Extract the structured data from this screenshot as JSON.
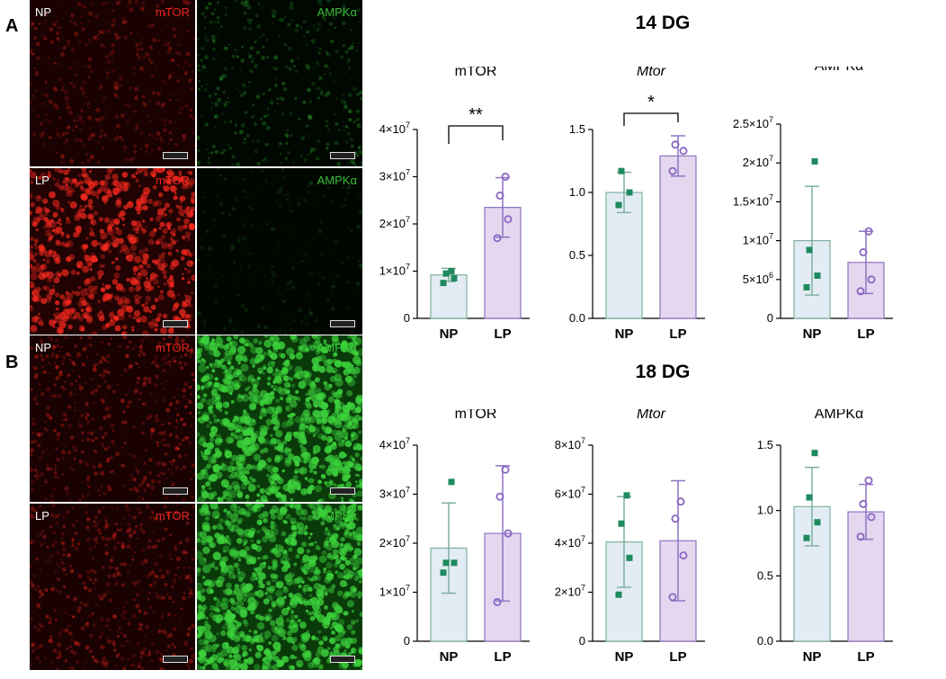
{
  "panels": [
    {
      "letter": "A",
      "section_title": "14 DG",
      "images": [
        {
          "row_label": "NP",
          "stain": "mTOR",
          "color": "#ff2a20",
          "bg": "#1a0202",
          "intensity": 0.32,
          "style": "sparse"
        },
        {
          "row_label": "",
          "stain": "AMPKα",
          "color": "#3cd23c",
          "bg": "#010801",
          "intensity": 0.32,
          "style": "sparse"
        },
        {
          "row_label": "LP",
          "stain": "mTOR",
          "color": "#ff2a20",
          "bg": "#200302",
          "intensity": 0.75,
          "style": "dense"
        },
        {
          "row_label": "",
          "stain": "AMPKα",
          "color": "#3cd23c",
          "bg": "#010601",
          "intensity": 0.14,
          "style": "faint"
        }
      ]
    },
    {
      "letter": "B",
      "section_title": "18 DG",
      "images": [
        {
          "row_label": "NP",
          "stain": "mTOR",
          "color": "#ff2a20",
          "bg": "#1a0202",
          "intensity": 0.4,
          "style": "medium"
        },
        {
          "row_label": "",
          "stain": "AMPKα",
          "color": "#3cd23c",
          "bg": "#0a3a0a",
          "intensity": 0.92,
          "style": "tissue"
        },
        {
          "row_label": "LP",
          "stain": "mTOR",
          "color": "#ff2a20",
          "bg": "#1a0202",
          "intensity": 0.38,
          "style": "medium"
        },
        {
          "row_label": "",
          "stain": "AMPKα",
          "color": "#3cd23c",
          "bg": "#0a3a0a",
          "intensity": 0.88,
          "style": "tissue"
        }
      ]
    }
  ],
  "colors": {
    "np_fill": "#e3ecf4",
    "np_stroke": "#7fb0a0",
    "np_point": "#1e8a5e",
    "lp_fill": "#e4d8f0",
    "lp_stroke": "#8f73c2",
    "lp_point": "#8a65c2"
  },
  "chart_data": [
    {
      "type": "bar",
      "panel": "14 DG",
      "title": "mTOR",
      "title_italic": false,
      "categories": [
        "NP",
        "LP"
      ],
      "series": [
        {
          "values": [
            9200000.0,
            23500000.0
          ],
          "error": [
            1400000.0,
            6300000.0
          ]
        }
      ],
      "points": [
        [
          7500000.0,
          8500000.0,
          9500000.0,
          10000000.0
        ],
        [
          17000000.0,
          21000000.0,
          26000000.0,
          30000000.0
        ]
      ],
      "ylim": [
        0,
        40000000.0
      ],
      "ticks": [
        {
          "v": 0,
          "label": "0"
        },
        {
          "v": 10000000.0,
          "label": "1×10^7"
        },
        {
          "v": 20000000.0,
          "label": "2×10^7"
        },
        {
          "v": 30000000.0,
          "label": "3×10^7"
        },
        {
          "v": 40000000.0,
          "label": "4×10^7"
        }
      ],
      "significance": "**"
    },
    {
      "type": "bar",
      "panel": "14 DG",
      "title": "Mtor",
      "title_italic": true,
      "categories": [
        "NP",
        "LP"
      ],
      "series": [
        {
          "values": [
            1.0,
            1.29
          ],
          "error": [
            0.16,
            0.16
          ]
        }
      ],
      "points": [
        [
          0.9,
          1.0,
          1.17
        ],
        [
          1.17,
          1.33,
          1.38
        ]
      ],
      "ylim": [
        0,
        1.5
      ],
      "ticks": [
        {
          "v": 0,
          "label": "0.0"
        },
        {
          "v": 0.5,
          "label": "0.5"
        },
        {
          "v": 1.0,
          "label": "1.0"
        },
        {
          "v": 1.5,
          "label": "1.5"
        }
      ],
      "significance": "*"
    },
    {
      "type": "bar",
      "panel": "14 DG",
      "title": "AMPKα",
      "title_italic": false,
      "categories": [
        "NP",
        "LP"
      ],
      "series": [
        {
          "values": [
            10000000.0,
            7200000.0
          ],
          "error": [
            7000000.0,
            4000000.0
          ]
        }
      ],
      "points": [
        [
          4000000.0,
          5500000.0,
          8800000.0,
          20200000.0
        ],
        [
          3500000.0,
          5000000.0,
          8500000.0,
          11200000.0
        ]
      ],
      "ylim": [
        0,
        25000000.0
      ],
      "ticks": [
        {
          "v": 0,
          "label": "0"
        },
        {
          "v": 5000000.0,
          "label": "5×10^6"
        },
        {
          "v": 10000000.0,
          "label": "1×10^7"
        },
        {
          "v": 15000000.0,
          "label": "1.5×10^7"
        },
        {
          "v": 20000000.0,
          "label": "2×10^7"
        },
        {
          "v": 25000000.0,
          "label": "2.5×10^7"
        }
      ],
      "significance": ""
    },
    {
      "type": "bar",
      "panel": "18 DG",
      "title": "mTOR",
      "title_italic": false,
      "categories": [
        "NP",
        "LP"
      ],
      "series": [
        {
          "values": [
            19000000.0,
            22000000.0
          ],
          "error": [
            9200000.0,
            13800000.0
          ]
        }
      ],
      "points": [
        [
          14000000.0,
          16000000.0,
          16000000.0,
          32500000.0
        ],
        [
          8000000.0,
          22000000.0,
          29500000.0,
          35000000.0
        ]
      ],
      "ylim": [
        0,
        40000000.0
      ],
      "ticks": [
        {
          "v": 0,
          "label": "0"
        },
        {
          "v": 10000000.0,
          "label": "1×10^7"
        },
        {
          "v": 20000000.0,
          "label": "2×10^7"
        },
        {
          "v": 30000000.0,
          "label": "3×10^7"
        },
        {
          "v": 40000000.0,
          "label": "4×10^7"
        }
      ],
      "significance": ""
    },
    {
      "type": "bar",
      "panel": "18 DG",
      "title": "Mtor",
      "title_italic": true,
      "categories": [
        "NP",
        "LP"
      ],
      "series": [
        {
          "values": [
            40500000.0,
            41000000.0
          ],
          "error": [
            18500000.0,
            24500000.0
          ]
        }
      ],
      "points": [
        [
          19000000.0,
          34000000.0,
          48000000.0,
          59500000.0
        ],
        [
          18000000.0,
          35000000.0,
          50000000.0,
          57000000.0
        ]
      ],
      "ylim": [
        0,
        80000000.0
      ],
      "ticks": [
        {
          "v": 0,
          "label": "0"
        },
        {
          "v": 20000000.0,
          "label": "2×10^7"
        },
        {
          "v": 40000000.0,
          "label": "4×10^7"
        },
        {
          "v": 60000000.0,
          "label": "6×10^7"
        },
        {
          "v": 80000000.0,
          "label": "8×10^7"
        }
      ],
      "significance": ""
    },
    {
      "type": "bar",
      "panel": "18 DG",
      "title": "AMPKα",
      "title_italic": false,
      "categories": [
        "NP",
        "LP"
      ],
      "series": [
        {
          "values": [
            1.03,
            0.99
          ],
          "error": [
            0.3,
            0.21
          ]
        }
      ],
      "points": [
        [
          0.79,
          0.91,
          1.1,
          1.44
        ],
        [
          0.8,
          0.95,
          1.05,
          1.23
        ]
      ],
      "ylim": [
        0,
        1.5
      ],
      "ticks": [
        {
          "v": 0,
          "label": "0.0"
        },
        {
          "v": 0.5,
          "label": "0.5"
        },
        {
          "v": 1.0,
          "label": "1.0"
        },
        {
          "v": 1.5,
          "label": "1.5"
        }
      ],
      "significance": ""
    }
  ]
}
